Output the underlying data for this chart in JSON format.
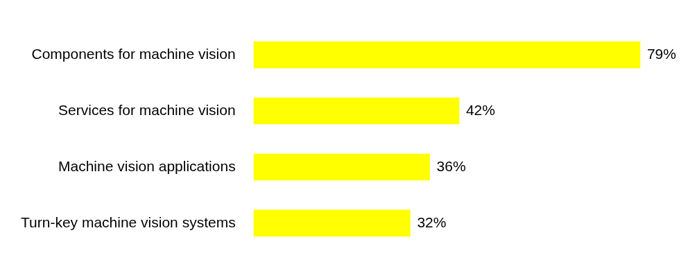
{
  "chart_data": {
    "type": "bar",
    "orientation": "horizontal",
    "categories": [
      "Components for machine vision",
      "Services for machine vision",
      "Machine vision applications",
      "Turn-key machine vision systems"
    ],
    "values": [
      79,
      42,
      36,
      32
    ],
    "value_labels": [
      "79%",
      "42%",
      "36%",
      "32%"
    ],
    "color": "#ffff00",
    "tick_labels": "y"
  }
}
